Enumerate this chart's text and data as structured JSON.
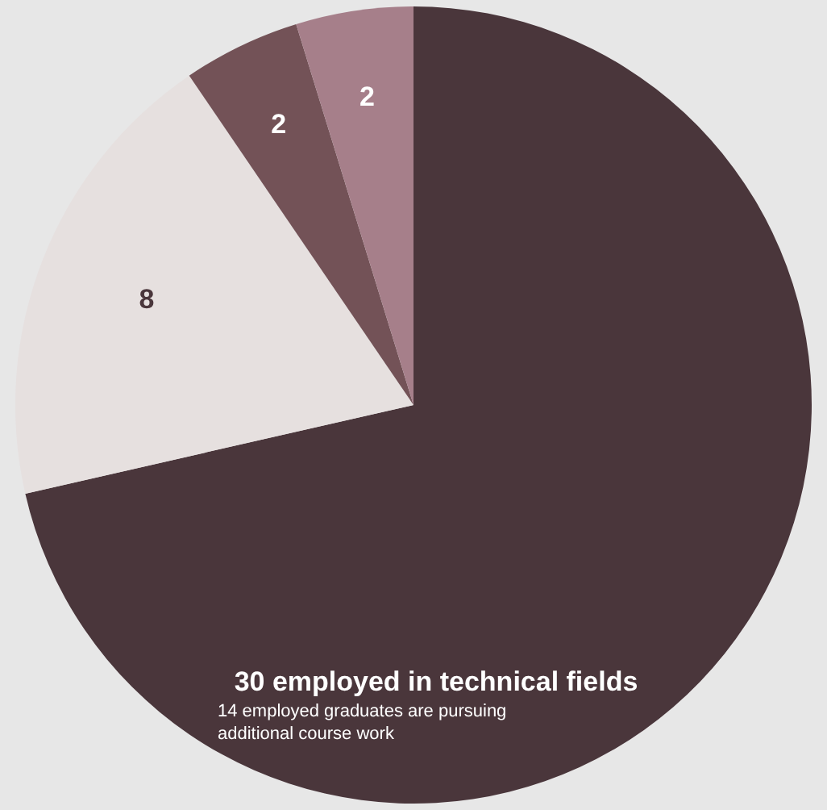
{
  "chart_data": {
    "type": "pie",
    "categories": [
      null,
      null,
      null,
      null
    ],
    "values": [
      30,
      8,
      2,
      2
    ],
    "colors": [
      "#4a363b",
      "#e6e0df",
      "#735257",
      "#a67f8a"
    ],
    "value_labels": [
      "30 employed in technical fields",
      "8",
      "2",
      "2"
    ],
    "annotations": [
      "14 employed graduates are pursuing additional course work"
    ]
  }
}
